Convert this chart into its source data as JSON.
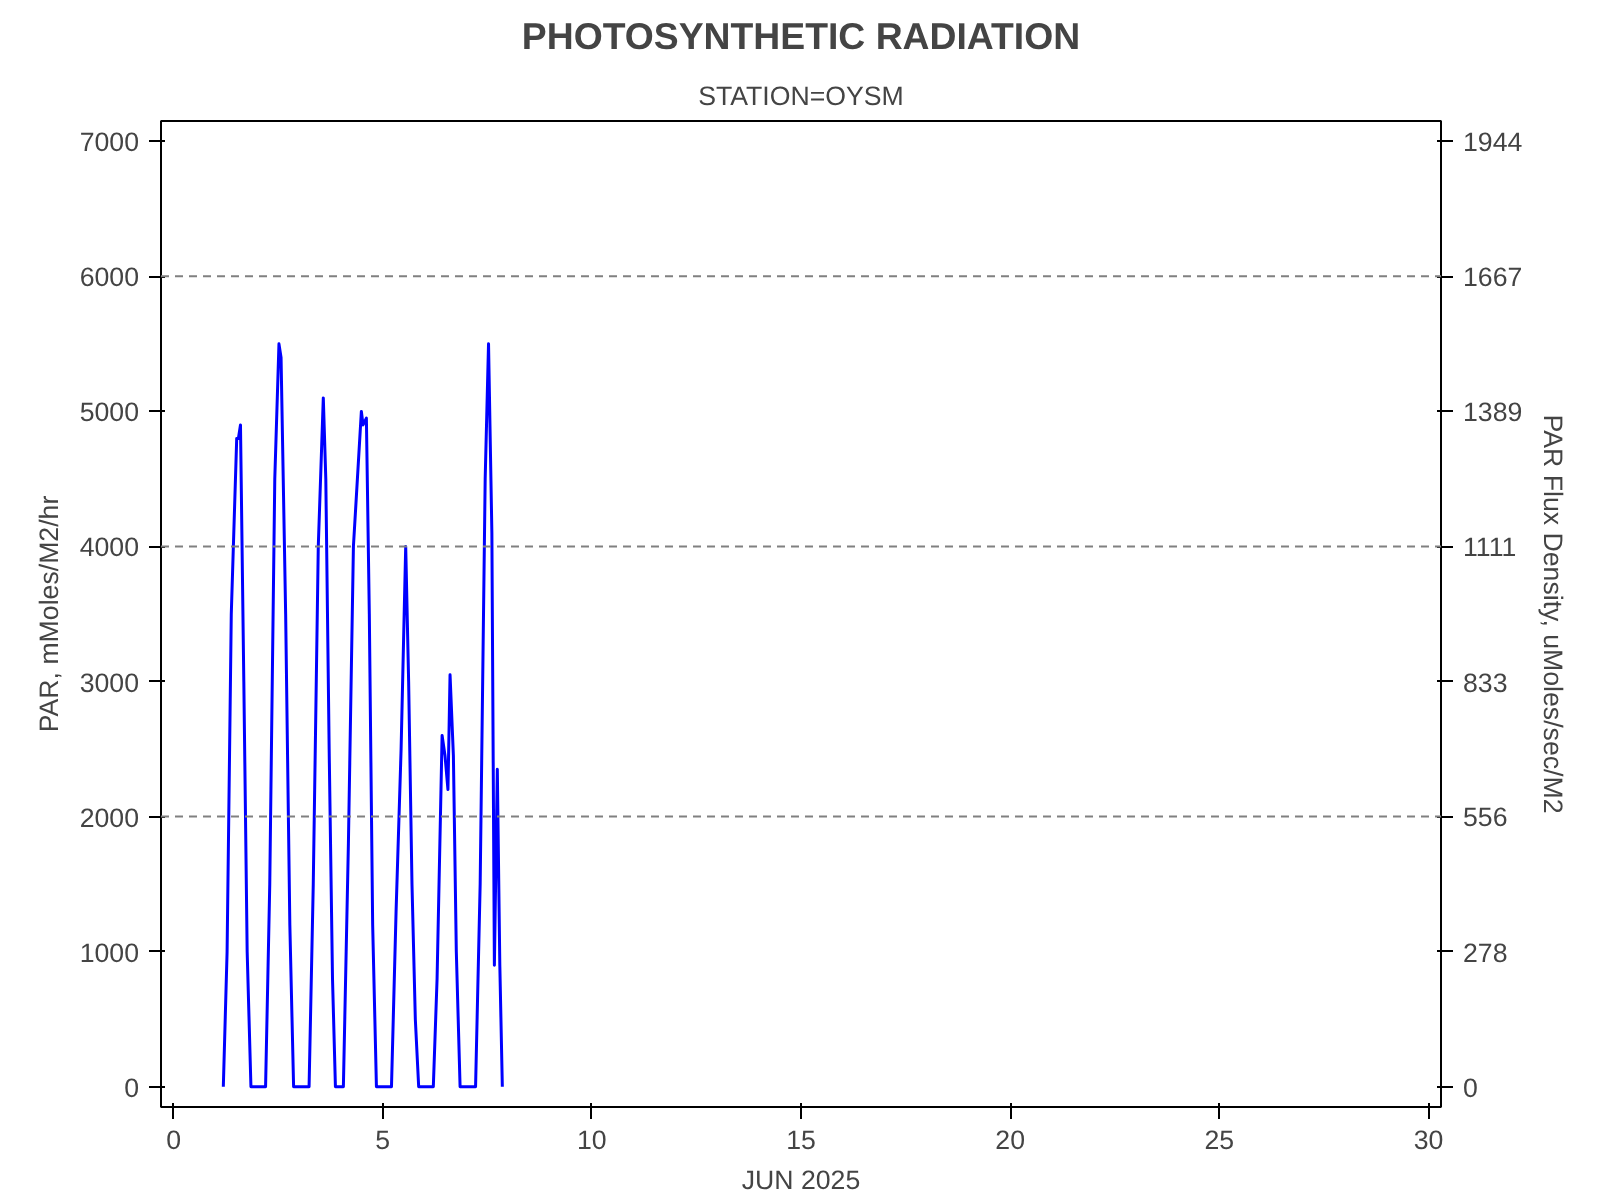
{
  "chart_data": {
    "type": "line",
    "title": "PHOTOSYNTHETIC RADIATION",
    "subtitle": "STATION=OYSM",
    "xlabel": "JUN 2025",
    "ylabel": "PAR, mMoles/M2/hr",
    "y2label": "PAR Flux Density, uMoles/sec/M2",
    "xlim": [
      -0.3,
      30.3
    ],
    "xticks": [
      0,
      5,
      10,
      15,
      20,
      25,
      30
    ],
    "ylim": [
      -150,
      7150
    ],
    "yticks": [
      0,
      1000,
      2000,
      3000,
      4000,
      5000,
      6000,
      7000
    ],
    "y2lim": [
      -41.7,
      1986
    ],
    "y2ticks": [
      0,
      278,
      556,
      833,
      1111,
      1389,
      1667,
      1944
    ],
    "grid": false,
    "marker": "none",
    "line_style": "solid",
    "ref_lines": [
      {
        "axis": "y",
        "value": 2000,
        "color": "#808080",
        "line_style": "dashed"
      },
      {
        "axis": "y",
        "value": 4000,
        "color": "#808080",
        "line_style": "dashed"
      },
      {
        "axis": "y",
        "value": 6000,
        "color": "#808080",
        "line_style": "dashed"
      }
    ],
    "series": [
      {
        "color": "#0000ff",
        "x": [
          1.19,
          1.28,
          1.38,
          1.51,
          1.55,
          1.6,
          1.68,
          1.76,
          1.85,
          2.2,
          2.3,
          2.42,
          2.52,
          2.57,
          2.68,
          2.78,
          2.87,
          3.24,
          3.34,
          3.46,
          3.58,
          3.64,
          3.72,
          3.8,
          3.87,
          4.06,
          4.18,
          4.3,
          4.49,
          4.53,
          4.61,
          4.68,
          4.76,
          4.85,
          5.21,
          5.32,
          5.44,
          5.55,
          5.62,
          5.7,
          5.78,
          5.86,
          6.21,
          6.3,
          6.42,
          6.49,
          6.56,
          6.61,
          6.69,
          6.76,
          6.85,
          7.22,
          7.33,
          7.45,
          7.53,
          7.61,
          7.67,
          7.74,
          7.8,
          7.86
        ],
        "values": [
          0,
          1000,
          3500,
          4800,
          4800,
          4900,
          3000,
          1000,
          0,
          0,
          1500,
          4500,
          5500,
          5400,
          3500,
          1200,
          0,
          0,
          1500,
          4000,
          5100,
          4500,
          2500,
          800,
          0,
          0,
          1800,
          4000,
          5000,
          4900,
          4950,
          3500,
          1200,
          0,
          0,
          1300,
          2500,
          4000,
          3000,
          1500,
          500,
          0,
          0,
          800,
          2600,
          2450,
          2200,
          3050,
          2450,
          1000,
          0,
          0,
          1500,
          4500,
          5500,
          4100,
          900,
          2350,
          900,
          0
        ]
      }
    ]
  }
}
